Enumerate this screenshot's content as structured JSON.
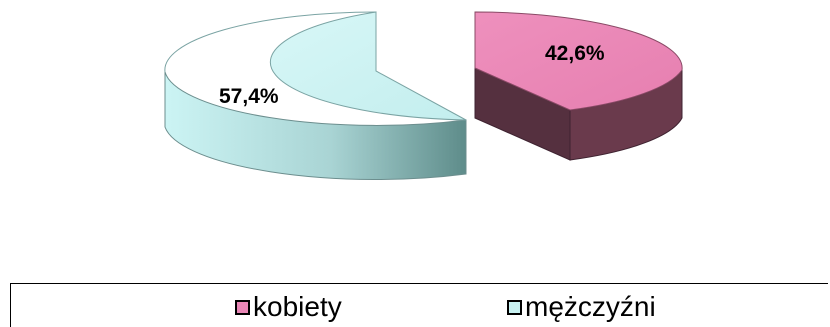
{
  "chart_data": {
    "type": "pie",
    "categories": [
      "kobiety",
      "mężczyźni"
    ],
    "values": [
      42.6,
      57.4
    ],
    "value_labels": [
      "42,6%",
      "57,4%"
    ],
    "colors": [
      "#e986b6",
      "#c8f2f2"
    ],
    "side_colors": [
      "#6a3a4c",
      "#8fbdbd"
    ],
    "exploded": true,
    "three_d": true,
    "legend_position": "bottom"
  }
}
